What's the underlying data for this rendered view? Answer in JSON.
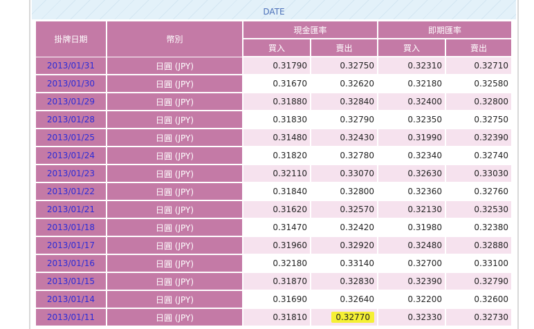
{
  "caption": "DATE",
  "table": {
    "headers": {
      "date": "掛牌日期",
      "currency": "幣別",
      "cash": "現金匯率",
      "spot": "即期匯率",
      "buy": "買入",
      "sell": "賣出"
    },
    "rows": [
      [
        "2013/01/31",
        "日圓 (JPY)",
        "0.31790",
        "0.32750",
        "0.32310",
        "0.32710"
      ],
      [
        "2013/01/30",
        "日圓 (JPY)",
        "0.31670",
        "0.32620",
        "0.32180",
        "0.32580"
      ],
      [
        "2013/01/29",
        "日圓 (JPY)",
        "0.31880",
        "0.32840",
        "0.32400",
        "0.32800"
      ],
      [
        "2013/01/28",
        "日圓 (JPY)",
        "0.31830",
        "0.32790",
        "0.32350",
        "0.32750"
      ],
      [
        "2013/01/25",
        "日圓 (JPY)",
        "0.31480",
        "0.32430",
        "0.31990",
        "0.32390"
      ],
      [
        "2013/01/24",
        "日圓 (JPY)",
        "0.31820",
        "0.32780",
        "0.32340",
        "0.32740"
      ],
      [
        "2013/01/23",
        "日圓 (JPY)",
        "0.32110",
        "0.33070",
        "0.32630",
        "0.33030"
      ],
      [
        "2013/01/22",
        "日圓 (JPY)",
        "0.31840",
        "0.32800",
        "0.32360",
        "0.32760"
      ],
      [
        "2013/01/21",
        "日圓 (JPY)",
        "0.31620",
        "0.32570",
        "0.32130",
        "0.32530"
      ],
      [
        "2013/01/18",
        "日圓 (JPY)",
        "0.31470",
        "0.32420",
        "0.31980",
        "0.32380"
      ],
      [
        "2013/01/17",
        "日圓 (JPY)",
        "0.31960",
        "0.32920",
        "0.32480",
        "0.32880"
      ],
      [
        "2013/01/16",
        "日圓 (JPY)",
        "0.32180",
        "0.33140",
        "0.32700",
        "0.33100"
      ],
      [
        "2013/01/15",
        "日圓 (JPY)",
        "0.31870",
        "0.32830",
        "0.32390",
        "0.32790"
      ],
      [
        "2013/01/14",
        "日圓 (JPY)",
        "0.31690",
        "0.32640",
        "0.32200",
        "0.32600"
      ],
      [
        "2013/01/11",
        "日圓 (JPY)",
        "0.31810",
        "0.32770",
        "0.32330",
        "0.32730"
      ]
    ]
  }
}
